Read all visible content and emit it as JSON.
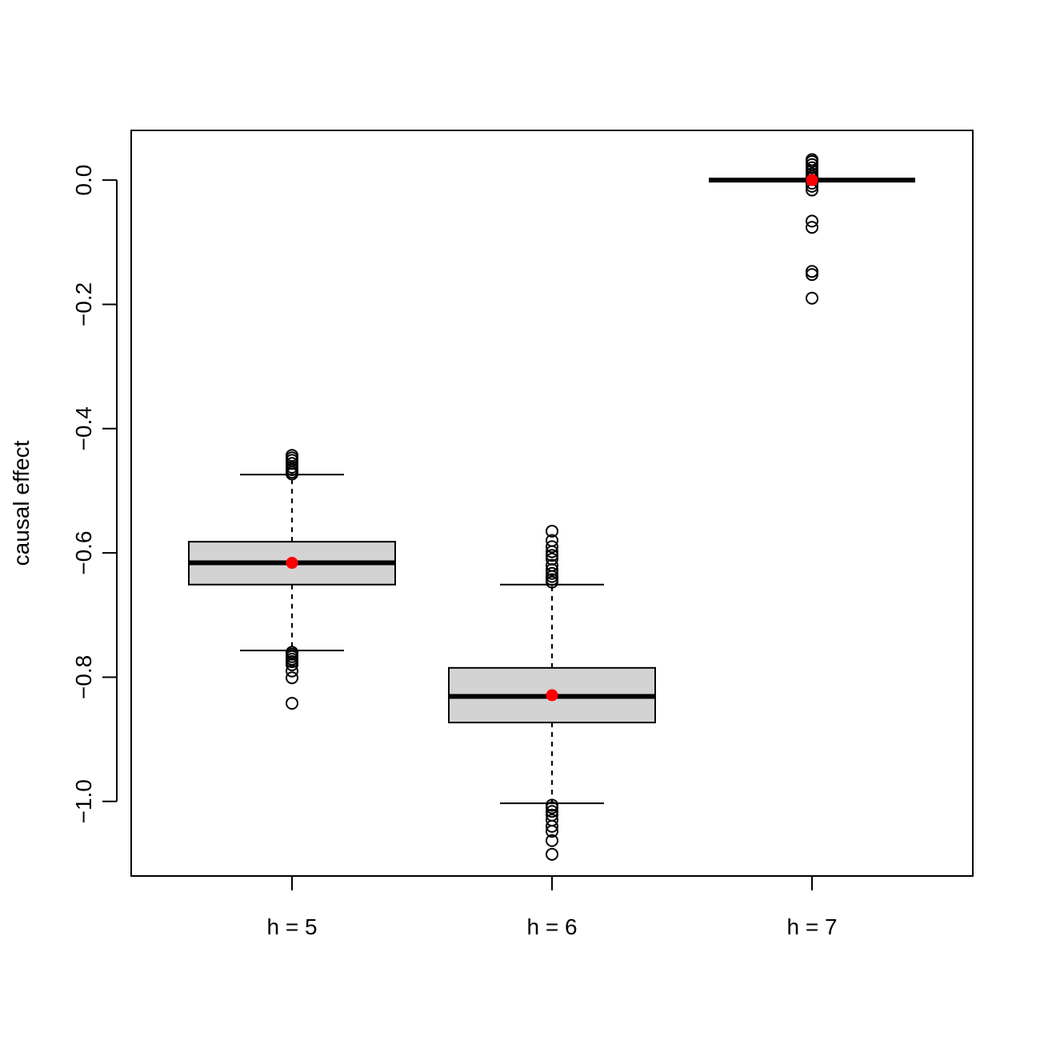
{
  "chart_data": {
    "type": "boxplot",
    "ylabel": "causal effect",
    "xlabel": "",
    "ylim": [
      -1.12,
      0.08
    ],
    "yticks": [
      -1.0,
      -0.8,
      -0.6,
      -0.4,
      -0.2,
      0.0
    ],
    "ytick_labels": [
      "−1.0",
      "−0.8",
      "−0.6",
      "−0.4",
      "−0.2",
      "0.0"
    ],
    "categories": [
      "h = 5",
      "h = 6",
      "h = 7"
    ],
    "grid": false,
    "legend": "none",
    "colors": {
      "box_fill": "#d3d3d3",
      "mean_marker": "#ff0000",
      "line": "#000000"
    },
    "boxes": [
      {
        "category": "h = 5",
        "whisker_low": -0.757,
        "q1": -0.651,
        "median": -0.616,
        "q3": -0.582,
        "whisker_high": -0.474,
        "mean": -0.616,
        "outliers": [
          -0.443,
          -0.447,
          -0.451,
          -0.456,
          -0.462,
          -0.466,
          -0.47,
          -0.473,
          -0.76,
          -0.763,
          -0.767,
          -0.771,
          -0.775,
          -0.78,
          -0.79,
          -0.801,
          -0.842
        ]
      },
      {
        "category": "h = 6",
        "whisker_low": -1.003,
        "q1": -0.873,
        "median": -0.831,
        "q3": -0.785,
        "whisker_high": -0.651,
        "mean": -0.829,
        "outliers": [
          -0.565,
          -0.58,
          -0.59,
          -0.598,
          -0.604,
          -0.61,
          -0.62,
          -0.627,
          -0.633,
          -0.638,
          -0.643,
          -0.647,
          -1.006,
          -1.01,
          -1.016,
          -1.022,
          -1.03,
          -1.04,
          -1.048,
          -1.063,
          -1.085
        ]
      },
      {
        "category": "h = 7",
        "whisker_low": 0.0,
        "q1": 0.0,
        "median": 0.0,
        "q3": 0.0,
        "whisker_high": 0.0,
        "mean": 0.0,
        "outliers": [
          0.033,
          0.03,
          0.025,
          0.02,
          0.015,
          0.01,
          0.006,
          0.003,
          -0.005,
          -0.01,
          -0.016,
          -0.066,
          -0.076,
          -0.147,
          -0.152,
          -0.19
        ]
      }
    ]
  }
}
